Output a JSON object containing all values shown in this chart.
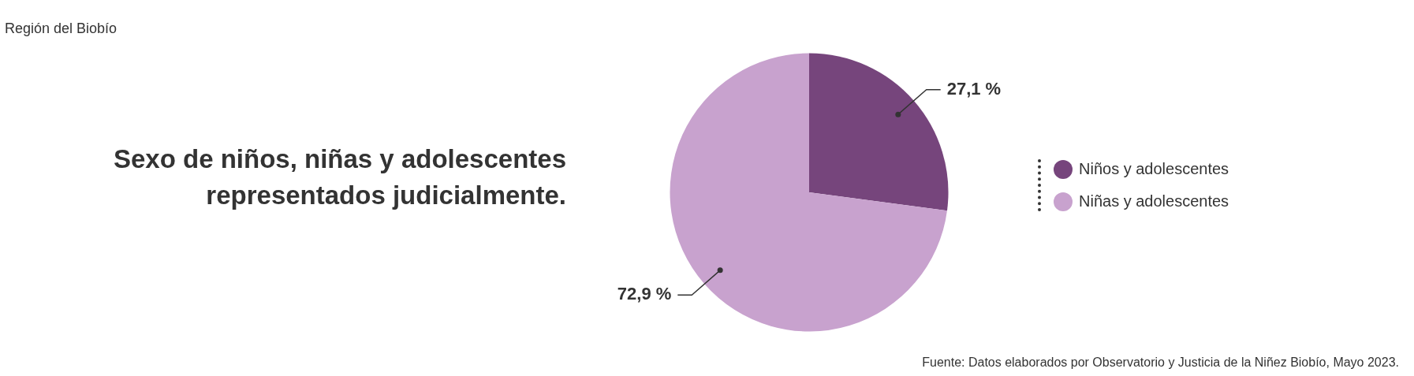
{
  "chart_data": {
    "type": "pie",
    "title": "Sexo de niños, niñas y adolescentes representados judicialmente.",
    "subtitle": "Región del Biobío",
    "categories": [
      "Niños y adolescentes",
      "Niñas y adolescentes"
    ],
    "values": [
      27.1,
      72.9
    ],
    "colors": [
      "#76457c",
      "#c8a2ce"
    ],
    "value_labels": [
      "27,1 %",
      "72,9 %"
    ],
    "legend": "right",
    "annotations": [
      "Fuente: Datos elaborados por Observatorio y Justicia de la Niñez Biobío, Mayo 2023."
    ]
  }
}
